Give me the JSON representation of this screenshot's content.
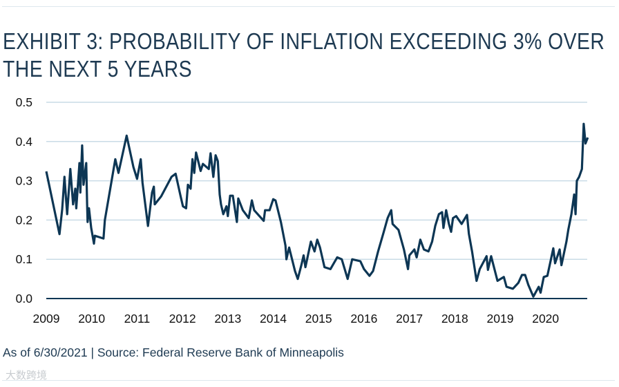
{
  "title_line1": "EXHIBIT 3: PROBABILITY OF INFLATION EXCEEDING 3% OVER",
  "title_line2": "THE NEXT 5 YEARS",
  "footer": "As of 6/30/2021 | Source: Federal Reserve Bank of Minneapolis",
  "watermark": "大数跨境",
  "colors": {
    "line": "#0d3654",
    "grid": "#c9dbe6",
    "axis": "#0d3654"
  },
  "chart_data": {
    "type": "line",
    "title": "EXHIBIT 3: PROBABILITY OF INFLATION EXCEEDING 3% OVER THE NEXT 5 YEARS",
    "xlabel": "",
    "ylabel": "",
    "xlim": [
      2009,
      2021
    ],
    "ylim": [
      0,
      0.5
    ],
    "grid": true,
    "x_ticks": [
      2009,
      2010,
      2011,
      2012,
      2013,
      2014,
      2015,
      2016,
      2017,
      2018,
      2019,
      2020
    ],
    "x_tick_labels": [
      "2009",
      "2010",
      "2011",
      "2012",
      "2013",
      "2014",
      "2015",
      "2016",
      "2017",
      "2018",
      "2019",
      "2020"
    ],
    "y_ticks": [
      0,
      0.1,
      0.2,
      0.3,
      0.4,
      0.5
    ],
    "y_tick_labels": [
      "0.0",
      "0.1",
      "0.2",
      "0.3",
      "0.4",
      "0.5"
    ],
    "series": [
      {
        "name": "Probability of inflation exceeding 3%",
        "x": [
          2009.0,
          2009.29,
          2009.35,
          2009.4,
          2009.46,
          2009.53,
          2009.59,
          2009.64,
          2009.66,
          2009.73,
          2009.75,
          2009.79,
          2009.82,
          2009.88,
          2009.9,
          2009.91,
          2009.94,
          2009.99,
          2010.05,
          2010.07,
          2010.26,
          2010.29,
          2010.52,
          2010.59,
          2010.77,
          2010.92,
          2011.0,
          2011.08,
          2011.12,
          2011.24,
          2011.33,
          2011.37,
          2011.39,
          2011.53,
          2011.76,
          2011.85,
          2011.96,
          2012.01,
          2012.08,
          2012.12,
          2012.18,
          2012.22,
          2012.26,
          2012.3,
          2012.4,
          2012.45,
          2012.58,
          2012.62,
          2012.68,
          2012.73,
          2012.78,
          2012.82,
          2012.85,
          2012.9,
          2012.97,
          2013.0,
          2013.05,
          2013.11,
          2013.2,
          2013.23,
          2013.33,
          2013.46,
          2013.53,
          2013.58,
          2013.79,
          2013.82,
          2013.92,
          2014.0,
          2014.05,
          2014.17,
          2014.27,
          2014.29,
          2014.35,
          2014.48,
          2014.54,
          2014.62,
          2014.67,
          2014.71,
          2014.83,
          2014.91,
          2014.97,
          2015.03,
          2015.13,
          2015.26,
          2015.41,
          2015.51,
          2015.64,
          2015.74,
          2015.92,
          2016.0,
          2016.12,
          2016.2,
          2016.31,
          2016.43,
          2016.52,
          2016.6,
          2016.63,
          2016.76,
          2016.88,
          2016.97,
          2017.0,
          2017.11,
          2017.16,
          2017.24,
          2017.32,
          2017.42,
          2017.5,
          2017.57,
          2017.65,
          2017.72,
          2017.75,
          2017.81,
          2017.87,
          2017.92,
          2017.96,
          2018.03,
          2018.15,
          2018.27,
          2018.31,
          2018.38,
          2018.48,
          2018.55,
          2018.7,
          2018.73,
          2018.8,
          2018.94,
          2019.08,
          2019.14,
          2019.28,
          2019.4,
          2019.48,
          2019.55,
          2019.62,
          2019.73,
          2019.85,
          2019.89,
          2019.96,
          2020.04,
          2020.11,
          2020.17,
          2020.21,
          2020.31,
          2020.35,
          2020.46,
          2020.5,
          2020.57,
          2020.63,
          2020.66,
          2020.69,
          2020.74,
          2020.8,
          2020.84,
          2020.88,
          2020.93
        ],
        "y": [
          0.324,
          0.164,
          0.227,
          0.31,
          0.215,
          0.33,
          0.24,
          0.28,
          0.23,
          0.345,
          0.27,
          0.39,
          0.29,
          0.345,
          0.24,
          0.195,
          0.23,
          0.18,
          0.14,
          0.16,
          0.153,
          0.2,
          0.355,
          0.32,
          0.415,
          0.335,
          0.305,
          0.355,
          0.295,
          0.185,
          0.27,
          0.285,
          0.24,
          0.26,
          0.31,
          0.318,
          0.26,
          0.235,
          0.23,
          0.29,
          0.28,
          0.355,
          0.32,
          0.372,
          0.325,
          0.343,
          0.33,
          0.37,
          0.31,
          0.365,
          0.35,
          0.265,
          0.24,
          0.215,
          0.235,
          0.21,
          0.262,
          0.262,
          0.195,
          0.255,
          0.225,
          0.205,
          0.25,
          0.225,
          0.198,
          0.225,
          0.225,
          0.253,
          0.25,
          0.194,
          0.135,
          0.1,
          0.13,
          0.07,
          0.05,
          0.085,
          0.11,
          0.08,
          0.145,
          0.12,
          0.15,
          0.13,
          0.08,
          0.075,
          0.105,
          0.1,
          0.05,
          0.1,
          0.095,
          0.075,
          0.058,
          0.07,
          0.12,
          0.168,
          0.205,
          0.225,
          0.19,
          0.175,
          0.125,
          0.075,
          0.11,
          0.125,
          0.105,
          0.15,
          0.125,
          0.12,
          0.145,
          0.185,
          0.215,
          0.22,
          0.18,
          0.225,
          0.19,
          0.17,
          0.205,
          0.21,
          0.19,
          0.213,
          0.165,
          0.12,
          0.045,
          0.075,
          0.108,
          0.073,
          0.108,
          0.045,
          0.055,
          0.03,
          0.025,
          0.04,
          0.06,
          0.06,
          0.035,
          0.005,
          0.03,
          0.015,
          0.055,
          0.058,
          0.095,
          0.128,
          0.09,
          0.125,
          0.085,
          0.145,
          0.175,
          0.215,
          0.265,
          0.215,
          0.3,
          0.31,
          0.33,
          0.445,
          0.395,
          0.41
        ]
      }
    ]
  }
}
